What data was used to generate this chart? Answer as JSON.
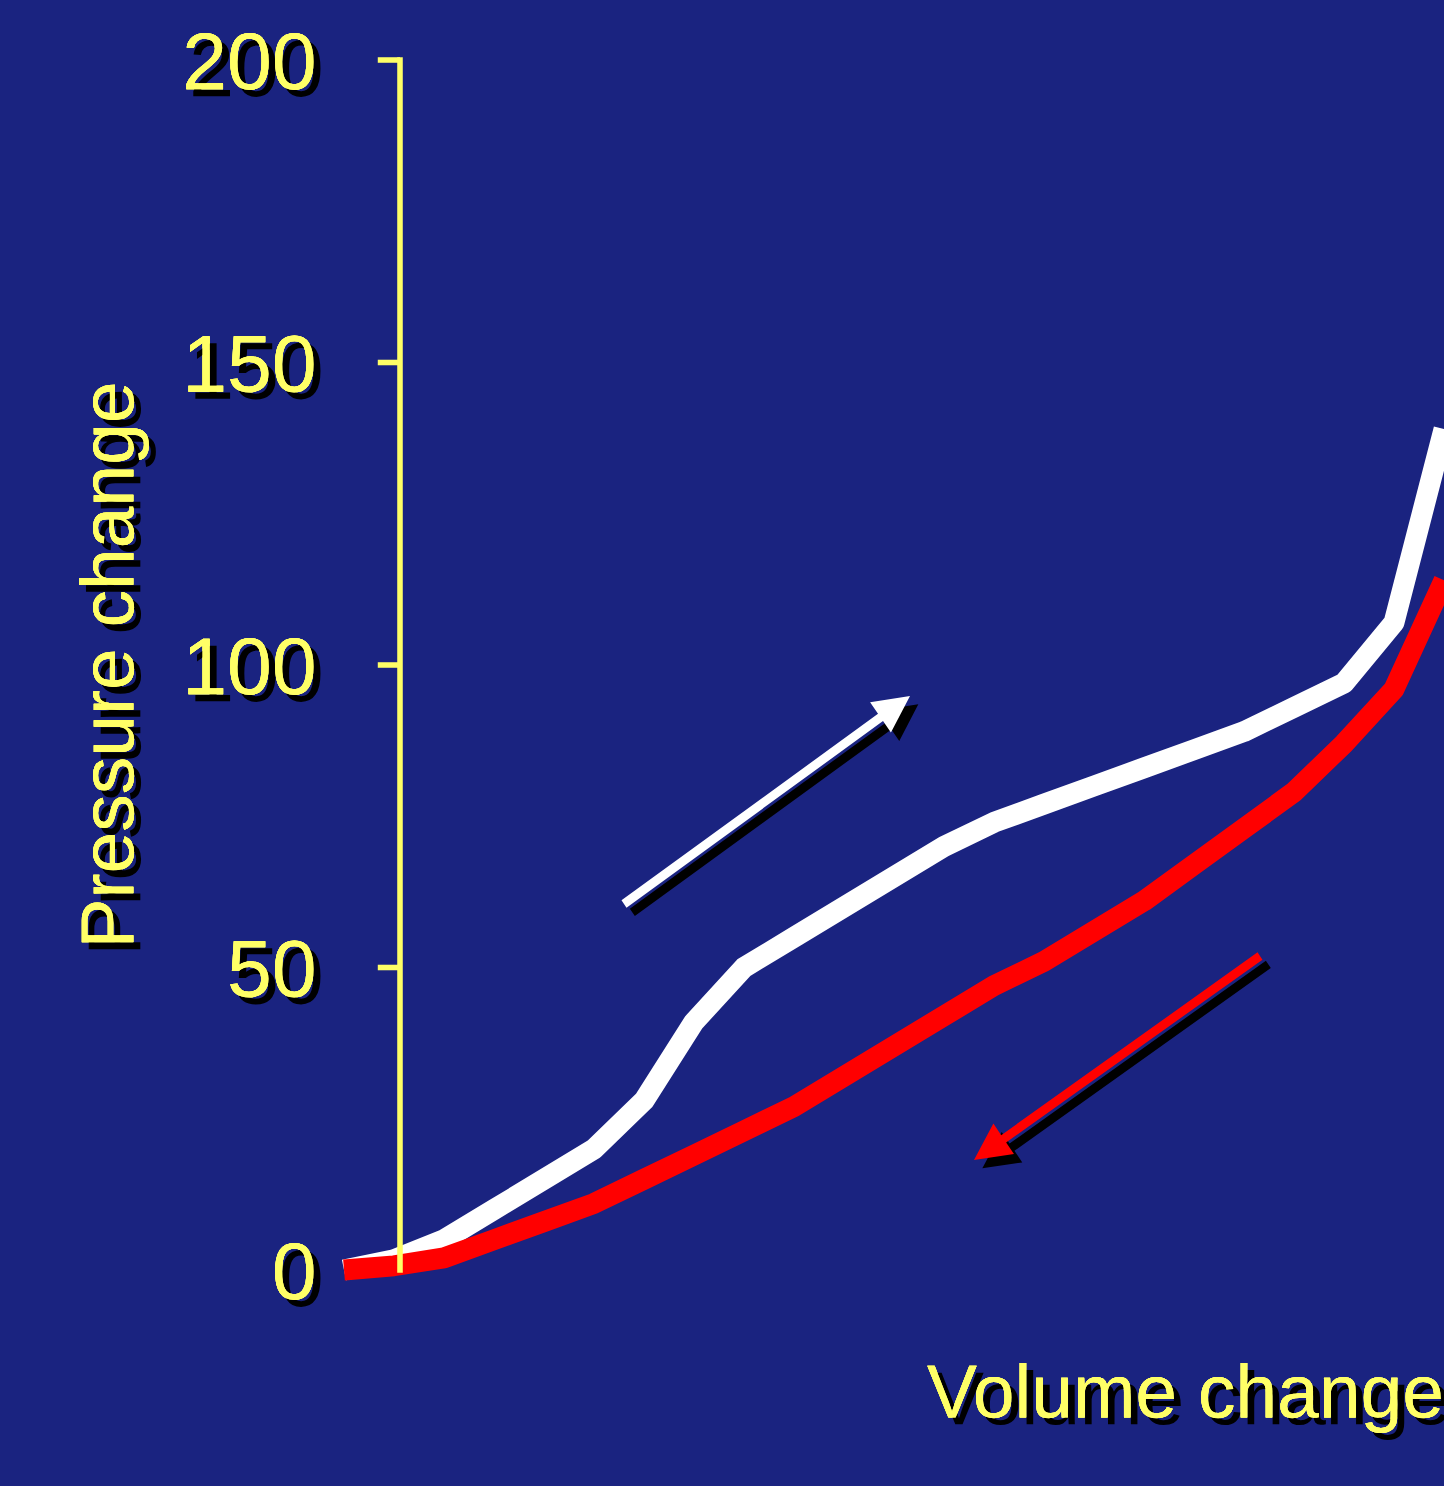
{
  "chart_data": {
    "type": "line",
    "xlabel": "Volume change",
    "ylabel": "Pressure change",
    "categories": [
      null,
      null,
      null,
      null,
      null,
      null,
      null,
      null,
      null,
      null,
      null,
      null,
      null,
      null,
      null,
      null,
      null,
      null,
      null,
      null,
      null,
      null,
      null
    ],
    "series": [
      {
        "color": "#ffffff",
        "values": [
          0,
          1.7,
          5,
          10,
          15,
          20,
          28,
          41,
          50,
          55,
          60,
          65,
          70,
          74,
          77,
          80,
          83,
          86,
          89,
          93,
          97,
          107,
          139
        ]
      },
      {
        "color": "#ff0000",
        "values": [
          0,
          0.7,
          2,
          5,
          8,
          11,
          15,
          19,
          23,
          27,
          32,
          37,
          42,
          47,
          51,
          56,
          61,
          67,
          73,
          79,
          87,
          96,
          114
        ]
      }
    ],
    "ylim": [
      0,
      200
    ],
    "yticks": [
      0,
      50,
      100,
      150,
      200
    ],
    "grid": false,
    "legend": false,
    "marker": "none",
    "line_style": "solid"
  }
}
